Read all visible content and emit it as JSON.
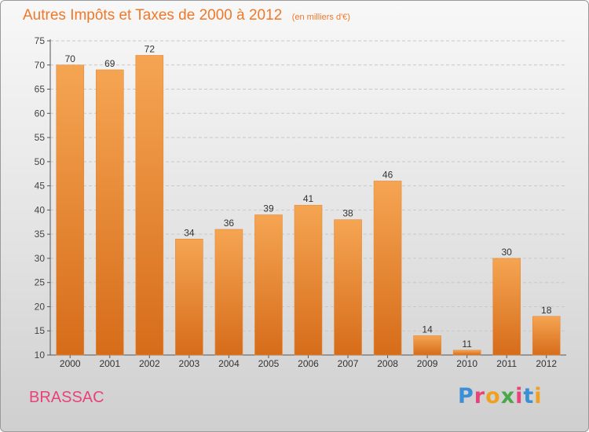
{
  "header": {
    "title": "Autres Impôts et Taxes de 2000 à 2012",
    "subtitle": "(en milliers d'€)"
  },
  "footer": {
    "town": "BRASSAC",
    "brand": "Proxiti"
  },
  "colors": {
    "bar_top": "#f5a552",
    "bar_bottom": "#d66c1a",
    "title": "#f07828",
    "town": "#e8427a"
  },
  "chart_data": {
    "type": "bar",
    "title": "Autres Impôts et Taxes de 2000 à 2012",
    "subtitle": "(en milliers d'€)",
    "xlabel": "",
    "ylabel": "",
    "categories": [
      "2000",
      "2001",
      "2002",
      "2003",
      "2004",
      "2005",
      "2006",
      "2007",
      "2008",
      "2009",
      "2010",
      "2011",
      "2012"
    ],
    "values": [
      70,
      69,
      72,
      34,
      36,
      39,
      41,
      38,
      46,
      14,
      11,
      30,
      18
    ],
    "ylim": [
      10,
      75
    ],
    "yticks": [
      10,
      15,
      20,
      25,
      30,
      35,
      40,
      45,
      50,
      55,
      60,
      65,
      70,
      75
    ],
    "grid": "horizontal dashed",
    "legend": "none"
  }
}
